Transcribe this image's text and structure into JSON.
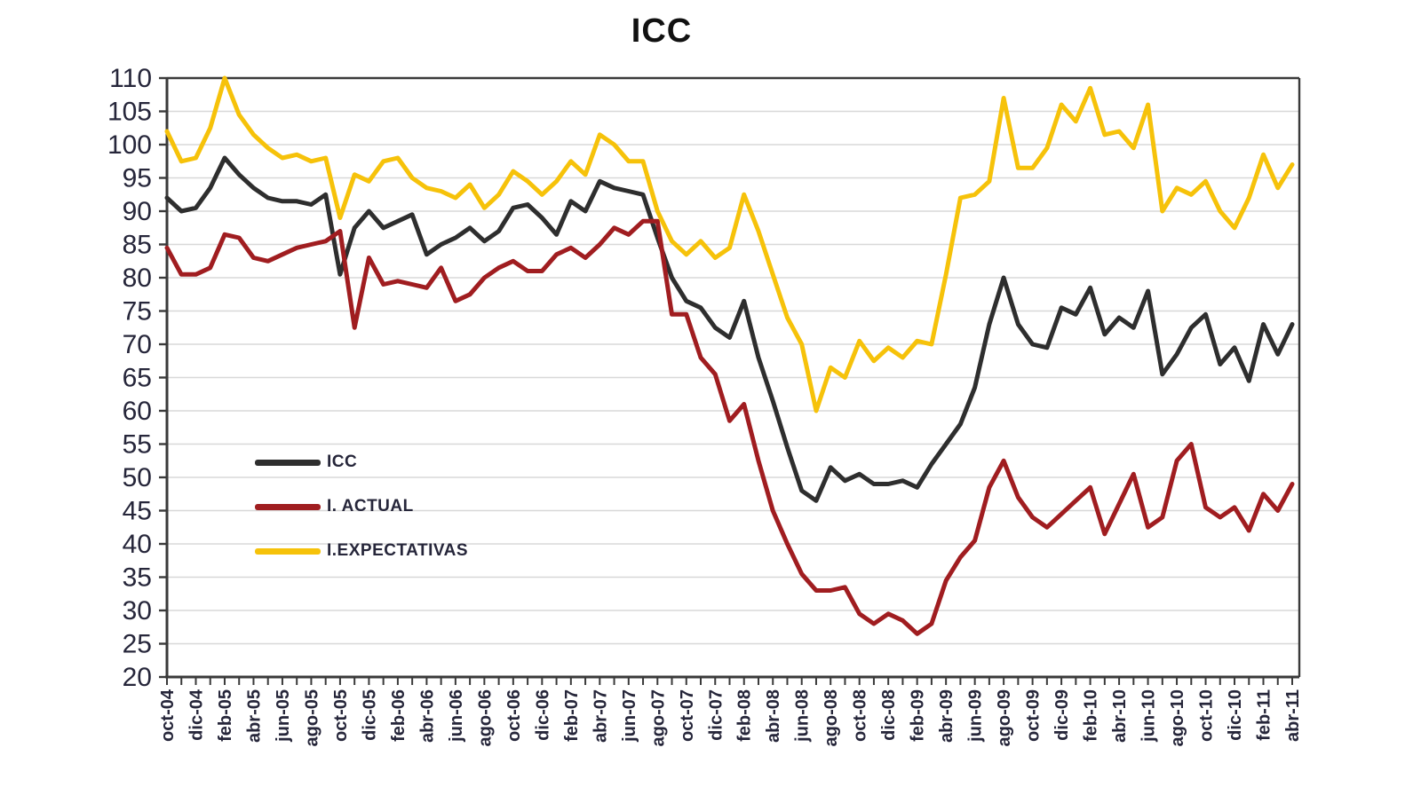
{
  "title": "ICC",
  "chart_data": {
    "type": "line",
    "title": "ICC",
    "xlabel": "",
    "ylabel": "",
    "ylim": [
      20,
      110
    ],
    "y_tick_step": 5,
    "grid": true,
    "legend_position": "inside-left",
    "x_label_every": 2,
    "categories": [
      "oct-04",
      "nov-04",
      "dic-04",
      "ene-05",
      "feb-05",
      "mar-05",
      "abr-05",
      "may-05",
      "jun-05",
      "jul-05",
      "ago-05",
      "sep-05",
      "oct-05",
      "nov-05",
      "dic-05",
      "ene-06",
      "feb-06",
      "mar-06",
      "abr-06",
      "may-06",
      "jun-06",
      "jul-06",
      "ago-06",
      "sep-06",
      "oct-06",
      "nov-06",
      "dic-06",
      "ene-07",
      "feb-07",
      "mar-07",
      "abr-07",
      "may-07",
      "jun-07",
      "jul-07",
      "ago-07",
      "sep-07",
      "oct-07",
      "nov-07",
      "dic-07",
      "ene-08",
      "feb-08",
      "mar-08",
      "abr-08",
      "may-08",
      "jun-08",
      "jul-08",
      "ago-08",
      "sep-08",
      "oct-08",
      "nov-08",
      "dic-08",
      "ene-09",
      "feb-09",
      "mar-09",
      "abr-09",
      "may-09",
      "jun-09",
      "jul-09",
      "ago-09",
      "sep-09",
      "oct-09",
      "nov-09",
      "dic-09",
      "ene-10",
      "feb-10",
      "mar-10",
      "abr-10",
      "may-10",
      "jun-10",
      "jul-10",
      "ago-10",
      "sep-10",
      "oct-10",
      "nov-10",
      "dic-10",
      "ene-11",
      "feb-11",
      "mar-11",
      "abr-11"
    ],
    "series": [
      {
        "name": "ICC",
        "color": "#2e2e2e",
        "values": [
          92,
          90,
          90.5,
          93.5,
          98,
          95.5,
          93.5,
          92,
          91.5,
          91.5,
          91,
          92.5,
          80.5,
          87.5,
          90,
          87.5,
          88.5,
          89.5,
          83.5,
          85,
          86,
          87.5,
          85.5,
          87,
          90.5,
          91,
          89,
          86.5,
          91.5,
          90,
          94.5,
          93.5,
          93,
          92.5,
          86,
          80,
          76.5,
          75.5,
          72.5,
          71,
          76.5,
          68,
          61.5,
          54.5,
          48,
          46.5,
          51.5,
          49.5,
          50.5,
          49,
          49,
          49.5,
          48.5,
          52,
          55,
          58,
          63.5,
          73,
          80,
          73,
          70,
          69.5,
          75.5,
          74.5,
          78.5,
          71.5,
          74,
          72.5,
          78,
          65.5,
          68.5,
          72.5,
          74.5,
          67,
          69.5,
          64.5,
          73,
          68.5,
          73
        ]
      },
      {
        "name": "I. ACTUAL",
        "color": "#A01D20",
        "values": [
          84.5,
          80.5,
          80.5,
          81.5,
          86.5,
          86,
          83,
          82.5,
          83.5,
          84.5,
          85,
          85.5,
          87,
          72.5,
          83,
          79,
          79.5,
          79,
          78.5,
          81.5,
          76.5,
          77.5,
          80,
          81.5,
          82.5,
          81,
          81,
          83.5,
          84.5,
          83,
          85,
          87.5,
          86.5,
          88.5,
          88.5,
          74.5,
          74.5,
          68,
          65.5,
          58.5,
          61,
          52.5,
          45,
          40,
          35.5,
          33,
          33,
          33.5,
          29.5,
          28,
          29.5,
          28.5,
          26.5,
          28,
          34.5,
          38,
          40.5,
          48.5,
          52.5,
          47,
          44,
          42.5,
          44.5,
          46.5,
          48.5,
          41.5,
          46,
          50.5,
          42.5,
          44,
          52.5,
          55,
          45.5,
          44,
          45.5,
          42,
          47.5,
          45,
          49
        ]
      },
      {
        "name": "I.EXPECTATIVAS",
        "color": "#F6C20A",
        "values": [
          102,
          97.5,
          98,
          102.5,
          110,
          104.5,
          101.5,
          99.5,
          98,
          98.5,
          97.5,
          98,
          89,
          95.5,
          94.5,
          97.5,
          98,
          95,
          93.5,
          93,
          92,
          94,
          90.5,
          92.5,
          96,
          94.5,
          92.5,
          94.5,
          97.5,
          95.5,
          101.5,
          100,
          97.5,
          97.5,
          90,
          85.5,
          83.5,
          85.5,
          83,
          84.5,
          92.5,
          87,
          80.5,
          74,
          70,
          60,
          66.5,
          65,
          70.5,
          67.5,
          69.5,
          68,
          70.5,
          70,
          80.5,
          92,
          92.5,
          94.5,
          107,
          96.5,
          96.5,
          99.5,
          106,
          103.5,
          108.5,
          101.5,
          102,
          99.5,
          106,
          90,
          93.5,
          92.5,
          94.5,
          90,
          87.5,
          92,
          98.5,
          93.5,
          97
        ]
      }
    ],
    "style": {
      "grid_color": "#d8d8d8",
      "axis_color": "#3a3a3a",
      "tick_label_color": "#26263a",
      "line_width": 5
    }
  },
  "legend": {
    "items": [
      {
        "label": "ICC"
      },
      {
        "label": "I. ACTUAL"
      },
      {
        "label": "I.EXPECTATIVAS"
      }
    ]
  }
}
